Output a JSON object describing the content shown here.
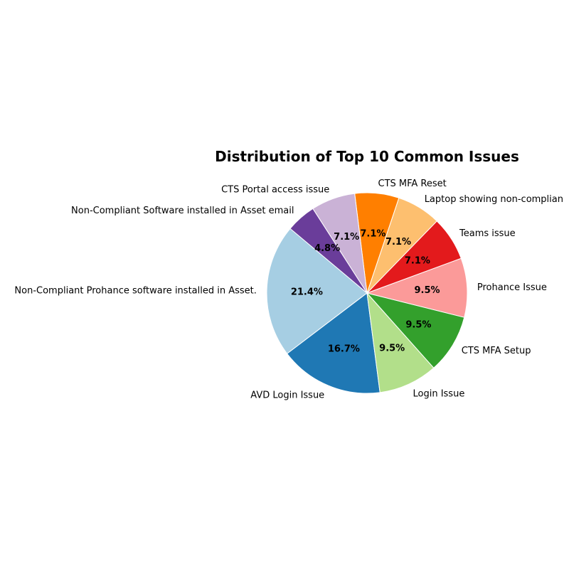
{
  "chart_data": {
    "type": "pie",
    "title": "Distribution of Top 10 Common Issues",
    "start_angle_deg": 140,
    "direction": "counterclockwise",
    "slices": [
      {
        "label": "Non-Compliant Prohance software installed in Asset.",
        "value": 21.4,
        "pct_label": "21.4%",
        "color": "#a6cee3"
      },
      {
        "label": "AVD Login Issue",
        "value": 16.7,
        "pct_label": "16.7%",
        "color": "#1f78b4"
      },
      {
        "label": "Login Issue",
        "value": 9.5,
        "pct_label": "9.5%",
        "color": "#b2df8a"
      },
      {
        "label": "CTS MFA Setup",
        "value": 9.5,
        "pct_label": "9.5%",
        "color": "#33a02c"
      },
      {
        "label": "Prohance Issue",
        "value": 9.5,
        "pct_label": "9.5%",
        "color": "#fb9a99"
      },
      {
        "label": "Teams issue",
        "value": 7.1,
        "pct_label": "7.1%",
        "color": "#e31a1c"
      },
      {
        "label": "Laptop showing non-complian",
        "value": 7.1,
        "pct_label": "7.1%",
        "color": "#fdbf6f"
      },
      {
        "label": "CTS MFA Reset",
        "value": 7.1,
        "pct_label": "7.1%",
        "color": "#ff7f00"
      },
      {
        "label": "CTS Portal access issue",
        "value": 7.1,
        "pct_label": "7.1%",
        "color": "#cab2d6"
      },
      {
        "label": "Non-Compliant Software installed in Asset email",
        "value": 4.8,
        "pct_label": "4.8%",
        "color": "#6a3d9a"
      }
    ]
  }
}
